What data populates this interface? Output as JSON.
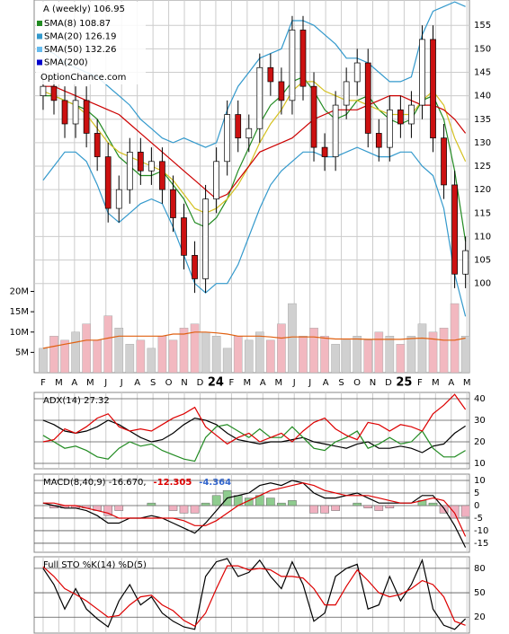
{
  "chart_data": {
    "type": "candlestick",
    "x": [
      0,
      0.69,
      1.38,
      2.07,
      2.76,
      3.45,
      4.14,
      4.83,
      5.52,
      6.21,
      6.9,
      7.59,
      8.28,
      8.97,
      9.66,
      10.35,
      11.04,
      11.73,
      12.42,
      13.11,
      13.8,
      14.49,
      15.18,
      15.87,
      16.56,
      17.25,
      17.94,
      18.63,
      19.32,
      20.01,
      20.7,
      21.39,
      22.08,
      22.77,
      23.46,
      24.15,
      24.84,
      25.53,
      26.22,
      26.91
    ],
    "xlim": [
      -0.57,
      27.16
    ],
    "xticks": [
      {
        "value": 0,
        "label": "F"
      },
      {
        "value": 1,
        "label": "M"
      },
      {
        "value": 2,
        "label": "A"
      },
      {
        "value": 3,
        "label": "M"
      },
      {
        "value": 4,
        "label": "J"
      },
      {
        "value": 5,
        "label": "J"
      },
      {
        "value": 6,
        "label": "A"
      },
      {
        "value": 7,
        "label": "S"
      },
      {
        "value": 8,
        "label": "O"
      },
      {
        "value": 9,
        "label": "N"
      },
      {
        "value": 10,
        "label": "D"
      },
      {
        "value": 11,
        "label": "24"
      },
      {
        "value": 12,
        "label": "F"
      },
      {
        "value": 13,
        "label": "M"
      },
      {
        "value": 14,
        "label": "A"
      },
      {
        "value": 15,
        "label": "M"
      },
      {
        "value": 16,
        "label": "J"
      },
      {
        "value": 17,
        "label": "J"
      },
      {
        "value": 18,
        "label": "A"
      },
      {
        "value": 19,
        "label": "S"
      },
      {
        "value": 20,
        "label": "O"
      },
      {
        "value": 21,
        "label": "N"
      },
      {
        "value": 22,
        "label": "D"
      },
      {
        "value": 23,
        "label": "25"
      },
      {
        "value": 24,
        "label": "F"
      },
      {
        "value": 25,
        "label": "M"
      },
      {
        "value": 26,
        "label": "A"
      },
      {
        "value": 27,
        "label": "M"
      }
    ],
    "panels": [
      {
        "type": "candlestick",
        "title": "A (weekly) 106.95",
        "watermark": "OptionChance.com",
        "ylim": [
          81,
          160.4
        ],
        "yticks": [
          155,
          150,
          145,
          140,
          135,
          130,
          125,
          120,
          115,
          110,
          105,
          100
        ],
        "open": [
          140,
          142,
          139,
          134,
          139,
          132,
          127,
          116,
          120,
          128,
          124,
          126,
          120,
          114,
          106,
          101,
          118,
          126,
          136,
          131,
          133,
          146,
          143,
          139,
          154,
          142,
          129,
          127,
          138,
          143,
          147,
          132,
          129,
          137,
          134,
          138,
          152,
          131,
          121,
          102
        ],
        "high": [
          145,
          145,
          142,
          142,
          142,
          135,
          130,
          123,
          131,
          131,
          129,
          129,
          123,
          117,
          109,
          121,
          129,
          139,
          139,
          136,
          149,
          149,
          146,
          157,
          157,
          145,
          132,
          141,
          146,
          150,
          150,
          135,
          140,
          140,
          141,
          155,
          155,
          134,
          124,
          110
        ],
        "low": [
          137,
          136,
          131,
          131,
          129,
          124,
          113,
          113,
          117,
          121,
          121,
          117,
          111,
          103,
          98,
          98,
          115,
          123,
          128,
          128,
          130,
          140,
          136,
          136,
          139,
          126,
          124,
          124,
          135,
          140,
          129,
          126,
          126,
          131,
          131,
          135,
          128,
          118,
          99,
          99
        ],
        "close": [
          142,
          139,
          134,
          139,
          132,
          127,
          116,
          120,
          128,
          124,
          126,
          120,
          114,
          106,
          101,
          118,
          126,
          136,
          131,
          133,
          146,
          143,
          139,
          154,
          142,
          129,
          127,
          138,
          143,
          147,
          132,
          129,
          137,
          134,
          138,
          152,
          131,
          121,
          102,
          107
        ],
        "legend": [
          {
            "name": "SMA(8) 108.87",
            "color": "#228b22"
          },
          {
            "name": "SMA(20) 126.19",
            "color": "#3399cc"
          },
          {
            "name": "SMA(50) 132.26",
            "color": "#66bbee"
          },
          {
            "name": "SMA(200)",
            "color": "#0000cc"
          }
        ],
        "lines": [
          {
            "color": "#228b22",
            "values": [
              140,
              140,
              139,
              138,
              137,
              135,
              131,
              127,
              125,
              123,
              123,
              124,
              121,
              118,
              113,
              112,
              114,
              118,
              124,
              129,
              134,
              138,
              140,
              143,
              144,
              141,
              137,
              135,
              136,
              139,
              140,
              137,
              135,
              134,
              135,
              139,
              140,
              135,
              124,
              109
            ]
          },
          {
            "color": "#d4c020",
            "values": [
              141,
              140,
              139,
              138,
              136,
              133,
              130,
              128,
              127,
              126,
              125,
              124,
              122,
              119,
              116,
              115,
              116,
              118,
              121,
              125,
              130,
              134,
              137,
              141,
              143,
              143,
              141,
              140,
              139,
              139,
              138,
              137,
              136,
              136,
              136,
              139,
              141,
              138,
              131,
              126
            ]
          },
          {
            "color": "#3399cc",
            "values": [
              150,
              149,
              147,
              146,
              145,
              144,
              142,
              140,
              138,
              135,
              133,
              131,
              130,
              131,
              130,
              129,
              130,
              137,
              142,
              145,
              148,
              149,
              150,
              156,
              156,
              155,
              153,
              151,
              148,
              148,
              147,
              145,
              143,
              143,
              144,
              153,
              158,
              159,
              160,
              159
            ]
          },
          {
            "color": "#3399cc",
            "values": [
              122,
              125,
              128,
              128,
              126,
              121,
              115,
              113,
              115,
              117,
              118,
              117,
              112,
              106,
              100,
              98,
              100,
              100,
              104,
              110,
              116,
              121,
              124,
              126,
              128,
              128,
              127,
              127,
              128,
              129,
              128,
              127,
              127,
              128,
              128,
              125,
              123,
              116,
              102,
              93
            ]
          },
          {
            "color": "#cc0000",
            "values": [
              142,
              142,
              141,
              140,
              139,
              138,
              137,
              136,
              134,
              132,
              130,
              128,
              126,
              124,
              122,
              120,
              118,
              119,
              122,
              125,
              128,
              129,
              130,
              131,
              133,
              135,
              136,
              137,
              137,
              137,
              138,
              139,
              140,
              140,
              139,
              138,
              138,
              137,
              135,
              132
            ]
          }
        ],
        "volume": {
          "ylim": [
            0,
            21000000
          ],
          "yticks": [
            {
              "value": 20000000,
              "label": "20M"
            },
            {
              "value": 15000000,
              "label": "15M"
            },
            {
              "value": 10000000,
              "label": "10M"
            },
            {
              "value": 5000000,
              "label": "5M"
            }
          ],
          "values": [
            6000000,
            9000000,
            8000000,
            10000000,
            12000000,
            8000000,
            14000000,
            11000000,
            7000000,
            8000000,
            6000000,
            9000000,
            8000000,
            11000000,
            12000000,
            10000000,
            9000000,
            6000000,
            9000000,
            8000000,
            10000000,
            8000000,
            12000000,
            17000000,
            9000000,
            11000000,
            9000000,
            7000000,
            8000000,
            9000000,
            8000000,
            10000000,
            9000000,
            7000000,
            9000000,
            12000000,
            10000000,
            11000000,
            17000000,
            9000000
          ],
          "average": [
            6000000,
            6500000,
            7000000,
            7500000,
            8000000,
            8000000,
            8500000,
            9000000,
            9000000,
            9000000,
            9000000,
            9000000,
            9500000,
            9500000,
            10000000,
            10000000,
            9800000,
            9500000,
            9000000,
            9000000,
            9000000,
            8800000,
            8500000,
            8800000,
            8800000,
            8800000,
            8500000,
            8300000,
            8300000,
            8300000,
            8200000,
            8200000,
            8200000,
            8200000,
            8400000,
            8500000,
            8300000,
            8000000,
            8000000,
            8500000
          ],
          "average_color": "#e06010",
          "up_color": "#d0d0d0",
          "down_color": "#f2b8c0"
        }
      },
      {
        "type": "line",
        "title": "ADX(14) 27.32",
        "ylim": [
          7.5,
          42.9
        ],
        "yticks": [
          40,
          30,
          20,
          10
        ],
        "lines": [
          {
            "color": "#000000",
            "values": [
              30,
              28,
              25,
              24,
              25,
              27,
              30,
              28,
              25,
              22,
              20,
              21,
              24,
              28,
              31,
              30,
              28,
              24,
              21,
              20,
              19,
              20,
              20,
              21,
              22,
              20,
              19,
              18,
              17,
              19,
              20,
              17,
              17,
              18,
              17,
              15,
              18,
              19,
              24,
              27.32
            ]
          },
          {
            "color": "#228b22",
            "values": [
              23,
              20,
              17,
              18,
              16,
              13,
              12,
              17,
              20,
              18,
              19,
              16,
              14,
              12,
              11,
              22,
              27,
              28,
              25,
              22,
              26,
              22,
              22,
              27,
              22,
              17,
              16,
              20,
              22,
              25,
              17,
              19,
              22,
              19,
              20,
              25,
              17,
              13,
              13,
              16
            ]
          },
          {
            "color": "#dd0000",
            "values": [
              20,
              21,
              26,
              24,
              27,
              31,
              33,
              27,
              25,
              26,
              25,
              28,
              31,
              33,
              36,
              27,
              23,
              19,
              22,
              24,
              20,
              22,
              24,
              20,
              25,
              29,
              31,
              26,
              23,
              21,
              29,
              28,
              25,
              28,
              27,
              25,
              33,
              37,
              42,
              35
            ]
          }
        ]
      },
      {
        "type": "macd",
        "title_parts": [
          {
            "text": "MACD(8,40,9) -16.670,",
            "color": "#000000"
          },
          {
            "text": "-12.305",
            "color": "#dd0000"
          },
          {
            "text": "-4.364",
            "color": "#3366cc"
          }
        ],
        "ylim": [
          -18.6,
          12.5
        ],
        "yticks": [
          10,
          5,
          0,
          -5,
          -10,
          -15
        ],
        "histogram": [
          0,
          -1,
          -1,
          -1,
          -1,
          -2,
          -4,
          -2,
          0,
          0,
          1,
          0,
          -2,
          -3,
          -3,
          1,
          4,
          6,
          4,
          3,
          4,
          3,
          1,
          2,
          0,
          -3,
          -3,
          -2,
          0,
          1,
          -1,
          -2,
          -1,
          0,
          0,
          2,
          1,
          -3,
          -5,
          -4.364
        ],
        "pos_color": "#8fcc8f",
        "neg_color": "#f0b0c0",
        "lines": [
          {
            "color": "#000000",
            "values": [
              1,
              0,
              -1,
              -1,
              -2,
              -4,
              -7,
              -7,
              -5,
              -5,
              -4,
              -5,
              -7,
              -9,
              -11,
              -7,
              -2,
              3,
              4,
              5,
              8,
              9,
              8,
              10,
              9,
              5,
              3,
              3,
              4,
              5,
              3,
              1,
              1,
              1,
              1,
              4,
              4,
              -1,
              -8,
              -16.67
            ]
          },
          {
            "color": "#dd0000",
            "values": [
              1,
              1,
              0,
              0,
              -1,
              -2,
              -3,
              -5,
              -5,
              -5,
              -5,
              -5,
              -5,
              -6,
              -8,
              -8,
              -6,
              -3,
              0,
              2,
              4,
              6,
              7,
              8,
              9,
              8,
              6,
              5,
              4,
              4,
              4,
              3,
              2,
              1,
              1,
              2,
              3,
              2,
              -3,
              -12.305
            ]
          }
        ]
      },
      {
        "type": "line",
        "title": "Full STO %K(14) %D(5)",
        "ylim": [
          0.4,
          94.2
        ],
        "yticks": [
          80,
          50,
          20
        ],
        "lines": [
          {
            "color": "#000000",
            "values": [
              80,
              60,
              30,
              55,
              30,
              18,
              8,
              40,
              60,
              35,
              45,
              25,
              15,
              8,
              5,
              70,
              88,
              92,
              70,
              75,
              90,
              70,
              55,
              88,
              60,
              15,
              25,
              70,
              80,
              85,
              30,
              35,
              70,
              40,
              60,
              90,
              30,
              10,
              5,
              18
            ]
          },
          {
            "color": "#dd0000",
            "values": [
              82,
              70,
              55,
              48,
              40,
              30,
              20,
              22,
              35,
              45,
              47,
              35,
              28,
              16,
              9,
              25,
              55,
              83,
              83,
              78,
              80,
              78,
              70,
              70,
              68,
              55,
              35,
              35,
              58,
              78,
              65,
              50,
              45,
              48,
              55,
              65,
              60,
              45,
              15,
              10
            ]
          }
        ]
      }
    ]
  }
}
